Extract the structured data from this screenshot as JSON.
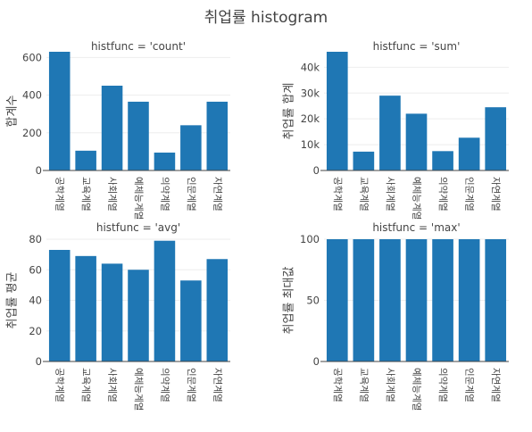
{
  "title": "취업률 histogram",
  "chart_data": [
    {
      "type": "bar",
      "title": "histfunc = 'count'",
      "ylabel": "합계수",
      "categories": [
        "공학계열",
        "교육계열",
        "사회계열",
        "예체능계열",
        "의약계열",
        "인문계열",
        "자연계열"
      ],
      "values": [
        630,
        105,
        450,
        365,
        95,
        240,
        365
      ],
      "ylim": [
        0,
        630
      ],
      "ticks": [
        0,
        200,
        400,
        600
      ],
      "tick_labels": [
        "0",
        "200",
        "400",
        "600"
      ]
    },
    {
      "type": "bar",
      "title": "histfunc = 'sum'",
      "ylabel": "취업률 합계",
      "categories": [
        "공학계열",
        "교육계열",
        "사회계열",
        "예체능계열",
        "의약계열",
        "인문계열",
        "자연계열"
      ],
      "values": [
        46000,
        7300,
        29000,
        22000,
        7500,
        12700,
        24500
      ],
      "ylim": [
        0,
        46000
      ],
      "ticks": [
        0,
        10000,
        20000,
        30000,
        40000
      ],
      "tick_labels": [
        "0",
        "10k",
        "20k",
        "30k",
        "40k"
      ]
    },
    {
      "type": "bar",
      "title": "histfunc = 'avg'",
      "ylabel": "취업률 평균",
      "categories": [
        "공학계열",
        "교육계열",
        "사회계열",
        "예체능계열",
        "의약계열",
        "인문계열",
        "자연계열"
      ],
      "values": [
        73,
        69,
        64,
        60,
        79,
        53,
        67
      ],
      "ylim": [
        0,
        80
      ],
      "ticks": [
        0,
        20,
        40,
        60,
        80
      ],
      "tick_labels": [
        "0",
        "20",
        "40",
        "60",
        "80"
      ]
    },
    {
      "type": "bar",
      "title": "histfunc = 'max'",
      "ylabel": "취업률 최대값",
      "categories": [
        "공학계열",
        "교육계열",
        "사회계열",
        "예체능계열",
        "의약계열",
        "인문계열",
        "자연계열"
      ],
      "values": [
        100,
        100,
        100,
        100,
        100,
        100,
        100
      ],
      "ylim": [
        0,
        100
      ],
      "ticks": [
        0,
        50,
        100
      ],
      "tick_labels": [
        "0",
        "50",
        "100"
      ]
    }
  ]
}
